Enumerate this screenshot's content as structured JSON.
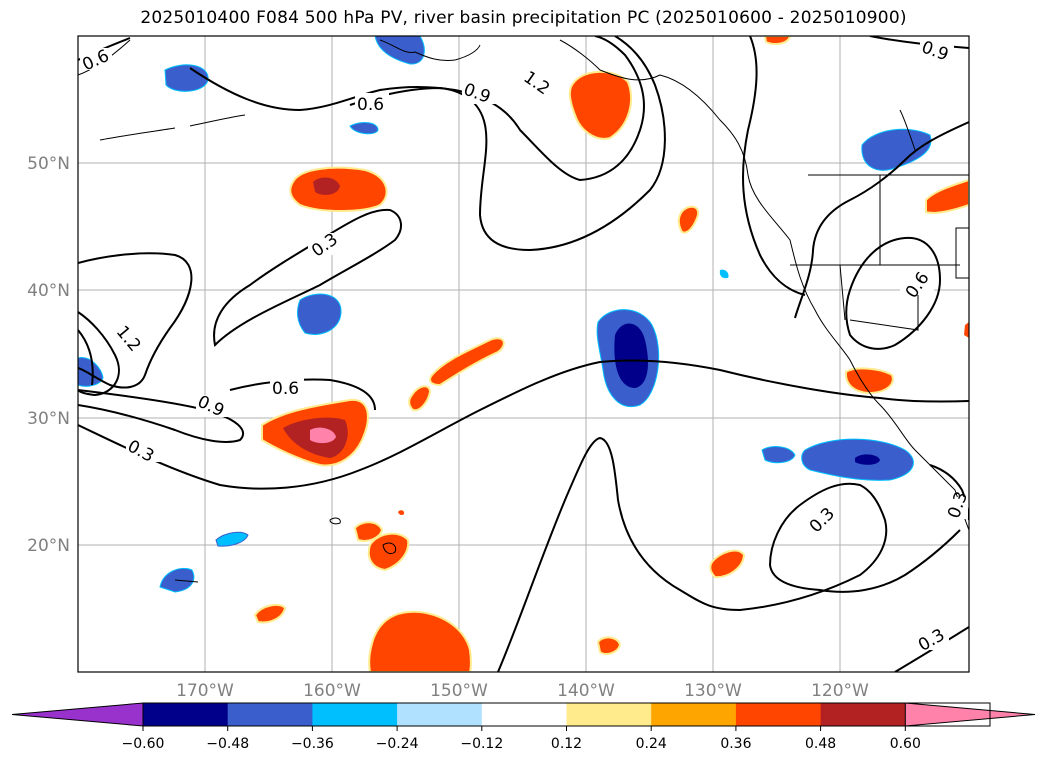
{
  "title": "2025010400 F084 500 hPa PV, river basin precipitation PC (2025010600 - 2025010900)",
  "map": {
    "lat_labels": [
      "50°N",
      "40°N",
      "30°N",
      "20°N"
    ],
    "lon_labels": [
      "170°W",
      "160°W",
      "150°W",
      "140°W",
      "130°W",
      "120°W"
    ],
    "contour_labels": [
      "0.6",
      "0.9",
      "1.2",
      "0.6",
      "0.3",
      "1.2",
      "0.6",
      "0.9",
      "0.3",
      "0.3",
      "0.6",
      "0.9",
      "0.3",
      "0.3"
    ]
  },
  "colorbar": {
    "colors": [
      "#9932cc",
      "#00008b",
      "#3a5fcd",
      "#00bfff",
      "#b0e2ff",
      "#ffffff",
      "#ffeb8c",
      "#ffa500",
      "#ff4500",
      "#b22222",
      "#ff82ab"
    ],
    "tick_labels": [
      "−0.60",
      "−0.48",
      "−0.36",
      "−0.24",
      "−0.12",
      "0.12",
      "0.24",
      "0.36",
      "0.48",
      "0.60"
    ]
  }
}
